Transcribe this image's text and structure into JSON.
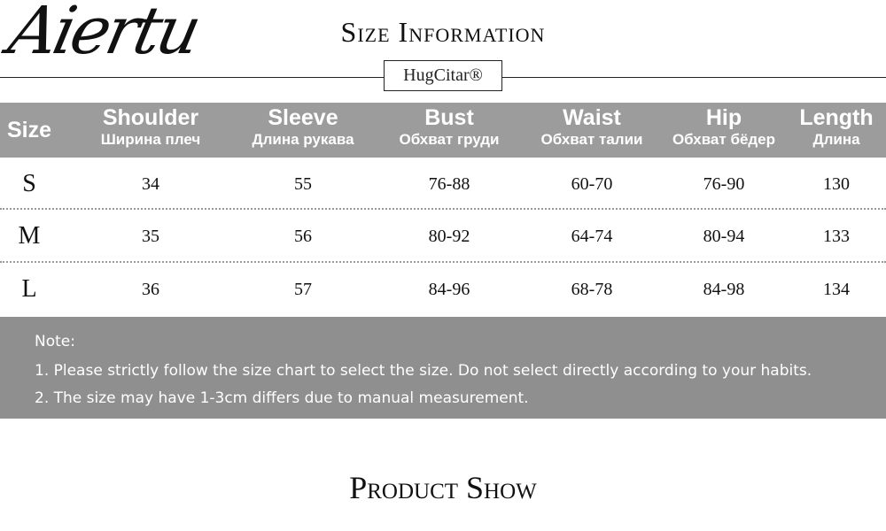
{
  "header": {
    "logo": "Aiertu",
    "title": "Size Information",
    "brand": "HugCitar®"
  },
  "table": {
    "columns": [
      {
        "en": "Size"
      },
      {
        "en": "Shoulder",
        "ru": "Ширина плеч"
      },
      {
        "en": "Sleeve",
        "ru": "Длина рукава"
      },
      {
        "en": "Bust",
        "ru": "Обхват груди"
      },
      {
        "en": "Waist",
        "ru": "Обхват талии"
      },
      {
        "en": "Hip",
        "ru": "Обхват бёдер"
      },
      {
        "en": "Length",
        "ru": "Длина"
      }
    ],
    "rows": [
      [
        "S",
        34,
        55,
        "76-88",
        "60-70",
        "76-90",
        130
      ],
      [
        "M",
        35,
        56,
        "80-92",
        "64-74",
        "80-94",
        133
      ],
      [
        "L",
        36,
        57,
        "84-96",
        "68-78",
        "84-98",
        134
      ]
    ]
  },
  "note": {
    "label": "Note:",
    "lines": [
      "1. Please strictly follow the size chart to select the size. Do not select directly according to your habits.",
      "2. The size may have 1-3cm differs due to manual measurement."
    ]
  },
  "footer": {
    "title": "Product Show"
  }
}
